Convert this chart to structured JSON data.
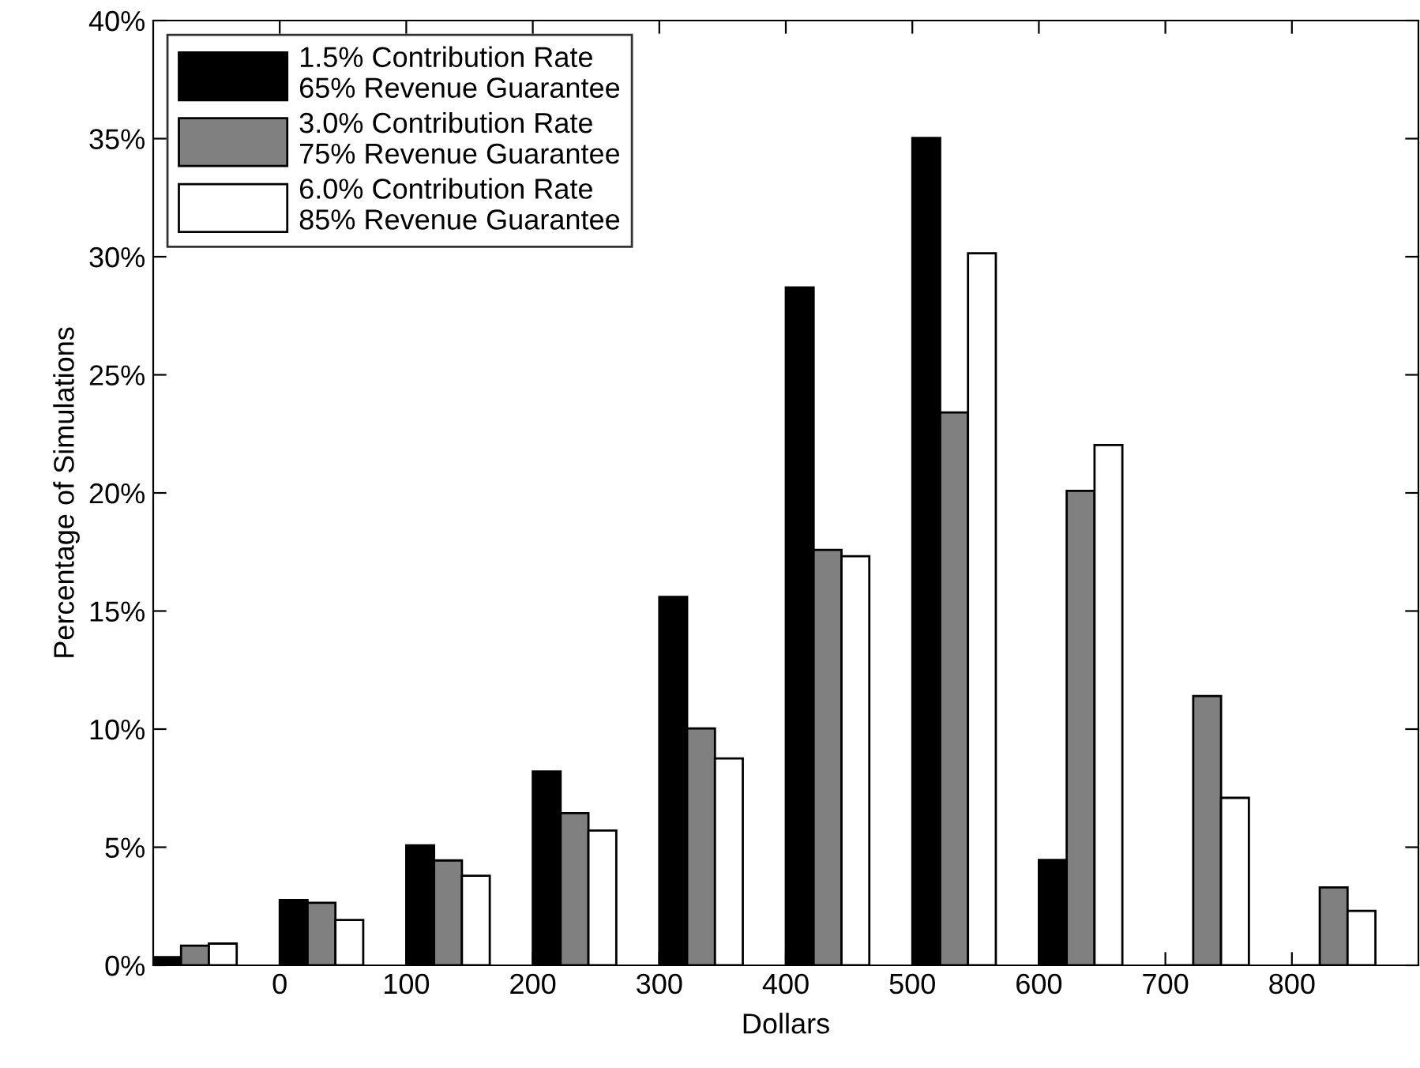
{
  "chart_data": {
    "type": "bar",
    "xlabel": "Dollars",
    "ylabel": "Percentage of Simulations",
    "xlim": [
      -100,
      900
    ],
    "xticks": [
      0,
      100,
      200,
      300,
      400,
      500,
      600,
      700,
      800
    ],
    "ylim": [
      0,
      40
    ],
    "yticks": [
      {
        "value": 0,
        "label": "0%"
      },
      {
        "value": 5,
        "label": "5%"
      },
      {
        "value": 10,
        "label": "10%"
      },
      {
        "value": 15,
        "label": "15%"
      },
      {
        "value": 20,
        "label": "20%"
      },
      {
        "value": 25,
        "label": "25%"
      },
      {
        "value": 30,
        "label": "30%"
      },
      {
        "value": 35,
        "label": "35%"
      },
      {
        "value": 40,
        "label": "40%"
      }
    ],
    "grid": false,
    "legend": "top left",
    "series": [
      {
        "name": "1.5% Contribution Rate\n65% Revenue Guarantee",
        "color": "#000000",
        "x": [
          -89,
          11,
          111,
          211,
          311,
          411,
          511,
          611,
          711,
          811
        ],
        "values": [
          0.35,
          2.76,
          5.08,
          8.21,
          15.6,
          28.7,
          35.03,
          4.46,
          0,
          0
        ]
      },
      {
        "name": "3.0% Contribution Rate\n75% Revenue Guarantee",
        "color": "#808080",
        "x": [
          -67,
          33,
          133,
          233,
          333,
          433,
          533,
          633,
          733,
          833
        ],
        "values": [
          0.83,
          2.65,
          4.44,
          6.44,
          10.03,
          17.59,
          23.41,
          20.09,
          11.4,
          3.3
        ]
      },
      {
        "name": "6.0% Contribution Rate\n85% Revenue Guarantee",
        "color": "#ffffff",
        "x": [
          -45,
          55,
          155,
          255,
          355,
          455,
          555,
          655,
          755,
          855
        ],
        "values": [
          0.92,
          1.92,
          3.79,
          5.71,
          8.76,
          17.32,
          30.15,
          22.03,
          7.09,
          2.3
        ]
      }
    ]
  }
}
